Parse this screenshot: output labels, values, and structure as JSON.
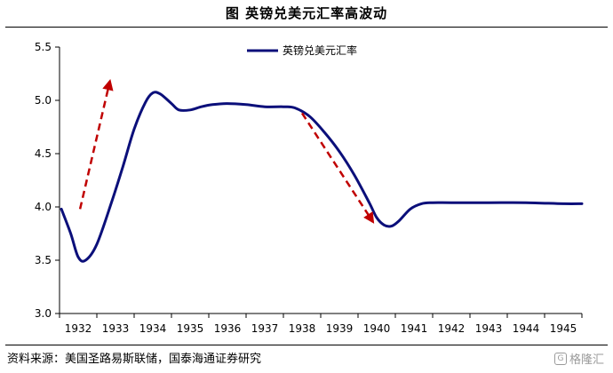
{
  "title": "图  英镑兑美元汇率高波动",
  "source": "资料来源：美国圣路易斯联储，国泰海通证券研究",
  "watermark": "格隆汇",
  "colors": {
    "line": "#0b0f7a",
    "arrow": "#c00000",
    "axis": "#000000"
  },
  "chart_data": {
    "type": "line",
    "title": "",
    "xlabel": "",
    "ylabel": "",
    "categories": [
      "1932",
      "1933",
      "1934",
      "1935",
      "1936",
      "1937",
      "1938",
      "1939",
      "1940",
      "1941",
      "1942",
      "1943",
      "1944",
      "1945"
    ],
    "ylim": [
      3.0,
      5.5
    ],
    "yticks": [
      "3.0",
      "3.5",
      "4.0",
      "4.5",
      "5.0",
      "5.5"
    ],
    "grid": false,
    "legend": "top-center",
    "series": [
      {
        "name": "英镑兑美元汇率",
        "x": [
          1931.55,
          1931.8,
          1932.0,
          1932.2,
          1932.5,
          1932.9,
          1933.2,
          1933.5,
          1933.8,
          1934.0,
          1934.2,
          1934.5,
          1934.7,
          1935.0,
          1935.3,
          1935.6,
          1936.0,
          1936.5,
          1937.0,
          1937.5,
          1937.8,
          1938.2,
          1938.6,
          1939.0,
          1939.4,
          1939.8,
          1940.0,
          1940.2,
          1940.4,
          1940.6,
          1940.9,
          1941.2,
          1941.5,
          1942,
          1943,
          1944,
          1945,
          1945.5
        ],
        "values": [
          3.98,
          3.75,
          3.53,
          3.5,
          3.65,
          4.05,
          4.38,
          4.73,
          4.98,
          5.07,
          5.06,
          4.97,
          4.91,
          4.91,
          4.94,
          4.96,
          4.97,
          4.96,
          4.94,
          4.94,
          4.93,
          4.85,
          4.7,
          4.52,
          4.3,
          4.04,
          3.9,
          3.83,
          3.82,
          3.87,
          3.98,
          4.03,
          4.04,
          4.04,
          4.04,
          4.04,
          4.03,
          4.03
        ]
      }
    ],
    "annotations": [
      {
        "type": "arrow",
        "style": "dashed",
        "direction": "up",
        "from": [
          1932.05,
          3.98
        ],
        "to": [
          1932.85,
          5.18
        ]
      },
      {
        "type": "arrow",
        "style": "dashed",
        "direction": "down",
        "from": [
          1938.0,
          4.88
        ],
        "to": [
          1939.9,
          3.86
        ]
      }
    ]
  }
}
